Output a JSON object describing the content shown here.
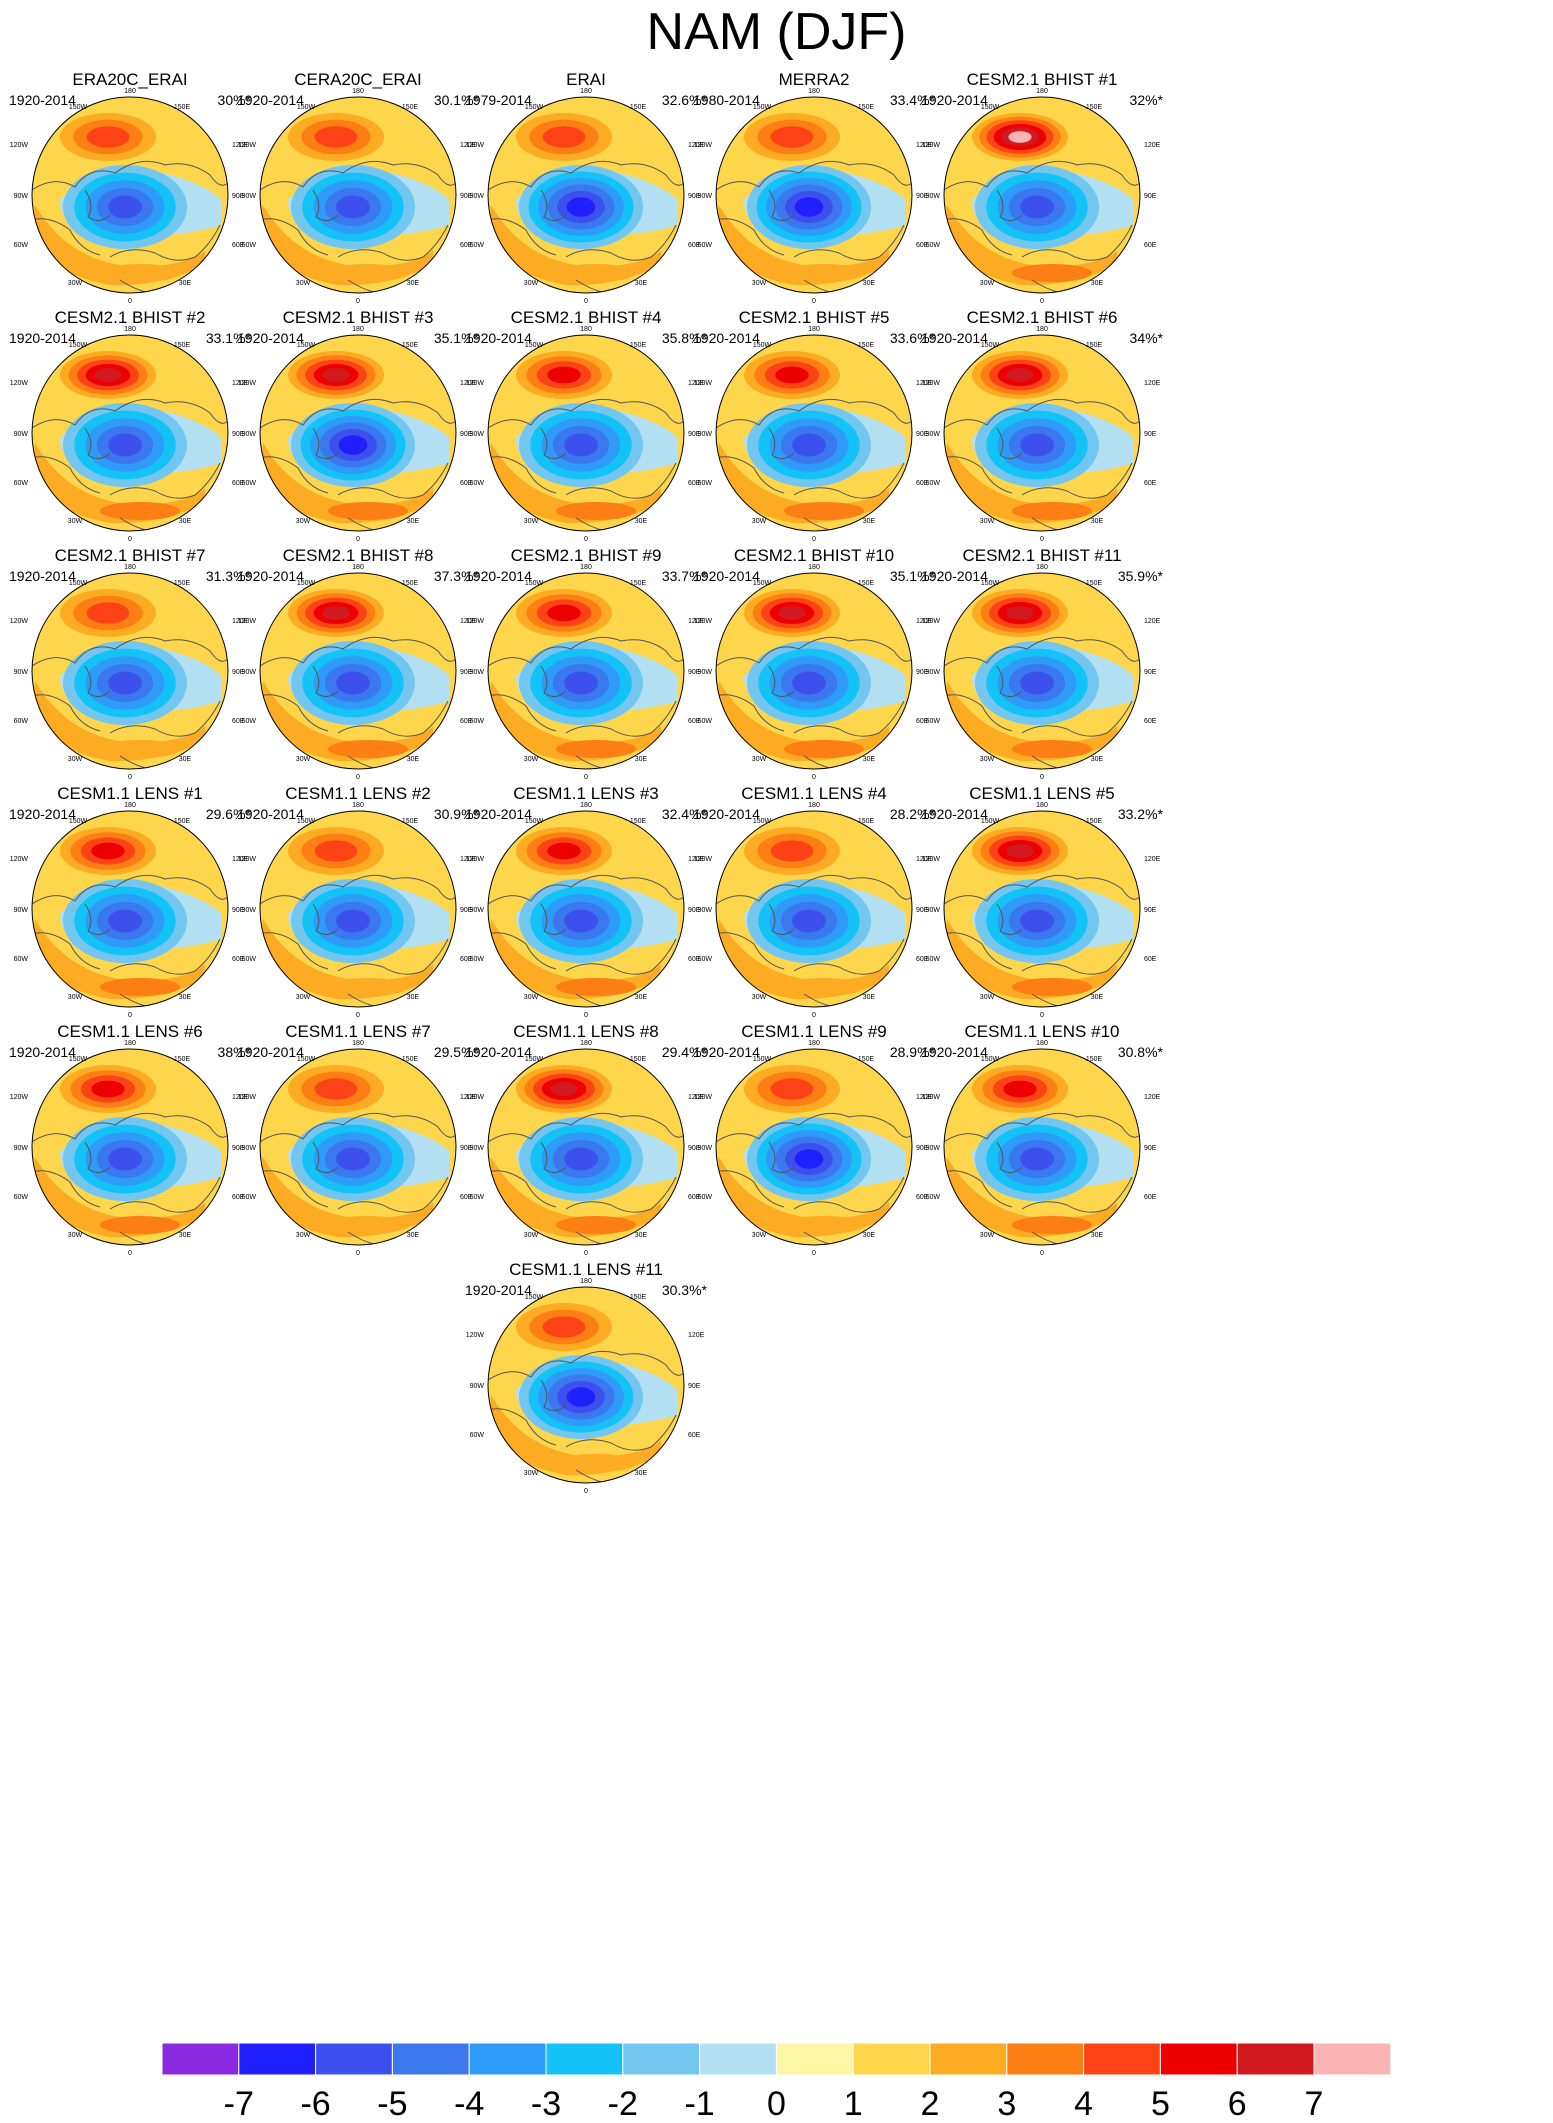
{
  "title": "NAM (DJF)",
  "map_labels": {
    "top": "180",
    "top_left": "150W",
    "top_right": "150E",
    "upper_left": "120W",
    "upper_right": "120E",
    "left": "90W",
    "right": "90E",
    "lower_left": "60W",
    "lower_right": "60E",
    "bottom_left": "30W",
    "bottom_right": "30E",
    "bottom": "0"
  },
  "panels": [
    {
      "title": "ERA20C_ERAI",
      "period": "1920-2014",
      "pct": "30%*",
      "pos_max": 3,
      "neg_min": -5
    },
    {
      "title": "CERA20C_ERAI",
      "period": "1920-2014",
      "pct": "30.1%*",
      "pos_max": 3,
      "neg_min": -5
    },
    {
      "title": "ERAI",
      "period": "1979-2014",
      "pct": "32.6%*",
      "pos_max": 3,
      "neg_min": -6
    },
    {
      "title": "MERRA2",
      "period": "1980-2014",
      "pct": "33.4%*",
      "pos_max": 3,
      "neg_min": -6
    },
    {
      "title": "CESM2.1 BHIST #1",
      "period": "1920-2014",
      "pct": "32%*",
      "pos_max": 6,
      "neg_min": -5
    },
    {
      "title": "CESM2.1 BHIST #2",
      "period": "1920-2014",
      "pct": "33.1%*",
      "pos_max": 5,
      "neg_min": -5
    },
    {
      "title": "CESM2.1 BHIST #3",
      "period": "1920-2014",
      "pct": "35.1%*",
      "pos_max": 5,
      "neg_min": -6
    },
    {
      "title": "CESM2.1 BHIST #4",
      "period": "1920-2014",
      "pct": "35.8%*",
      "pos_max": 4,
      "neg_min": -5
    },
    {
      "title": "CESM2.1 BHIST #5",
      "period": "1920-2014",
      "pct": "33.6%*",
      "pos_max": 4,
      "neg_min": -5
    },
    {
      "title": "CESM2.1 BHIST #6",
      "period": "1920-2014",
      "pct": "34%*",
      "pos_max": 5,
      "neg_min": -5
    },
    {
      "title": "CESM2.1 BHIST #7",
      "period": "1920-2014",
      "pct": "31.3%*",
      "pos_max": 3,
      "neg_min": -5
    },
    {
      "title": "CESM2.1 BHIST #8",
      "period": "1920-2014",
      "pct": "37.3%*",
      "pos_max": 5,
      "neg_min": -5
    },
    {
      "title": "CESM2.1 BHIST #9",
      "period": "1920-2014",
      "pct": "33.7%*",
      "pos_max": 4,
      "neg_min": -5
    },
    {
      "title": "CESM2.1 BHIST #10",
      "period": "1920-2014",
      "pct": "35.1%*",
      "pos_max": 5,
      "neg_min": -5
    },
    {
      "title": "CESM2.1 BHIST #11",
      "period": "1920-2014",
      "pct": "35.9%*",
      "pos_max": 5,
      "neg_min": -5
    },
    {
      "title": "CESM1.1 LENS #1",
      "period": "1920-2014",
      "pct": "29.6%*",
      "pos_max": 4,
      "neg_min": -5
    },
    {
      "title": "CESM1.1 LENS #2",
      "period": "1920-2014",
      "pct": "30.9%*",
      "pos_max": 3,
      "neg_min": -5
    },
    {
      "title": "CESM1.1 LENS #3",
      "period": "1920-2014",
      "pct": "32.4%*",
      "pos_max": 4,
      "neg_min": -5
    },
    {
      "title": "CESM1.1 LENS #4",
      "period": "1920-2014",
      "pct": "28.2%*",
      "pos_max": 3,
      "neg_min": -5
    },
    {
      "title": "CESM1.1 LENS #5",
      "period": "1920-2014",
      "pct": "33.2%*",
      "pos_max": 5,
      "neg_min": -5
    },
    {
      "title": "CESM1.1 LENS #6",
      "period": "1920-2014",
      "pct": "38%*",
      "pos_max": 4,
      "neg_min": -5
    },
    {
      "title": "CESM1.1 LENS #7",
      "period": "1920-2014",
      "pct": "29.5%*",
      "pos_max": 3,
      "neg_min": -5
    },
    {
      "title": "CESM1.1 LENS #8",
      "period": "1920-2014",
      "pct": "29.4%*",
      "pos_max": 5,
      "neg_min": -5
    },
    {
      "title": "CESM1.1 LENS #9",
      "period": "1920-2014",
      "pct": "28.9%*",
      "pos_max": 3,
      "neg_min": -6
    },
    {
      "title": "CESM1.1 LENS #10",
      "period": "1920-2014",
      "pct": "30.8%*",
      "pos_max": 4,
      "neg_min": -5
    },
    {
      "title": "CESM1.1 LENS #11",
      "period": "1920-2014",
      "pct": "30.3%*",
      "pos_max": 3,
      "neg_min": -6
    }
  ],
  "colorbar": {
    "colors": [
      "#8a2be2",
      "#2020ff",
      "#3c50ee",
      "#3b78ee",
      "#2d9bf7",
      "#13c3f7",
      "#72c6f0",
      "#b2dff2",
      "#fdf6a5",
      "#fdd64b",
      "#fdab22",
      "#fd7e13",
      "#fd4316",
      "#ed0000",
      "#d11a1f",
      "#fdb4b4"
    ],
    "labels": [
      "-7",
      "-6",
      "-5",
      "-4",
      "-3",
      "-2",
      "-1",
      "0",
      "1",
      "2",
      "3",
      "4",
      "5",
      "6",
      "7"
    ]
  }
}
